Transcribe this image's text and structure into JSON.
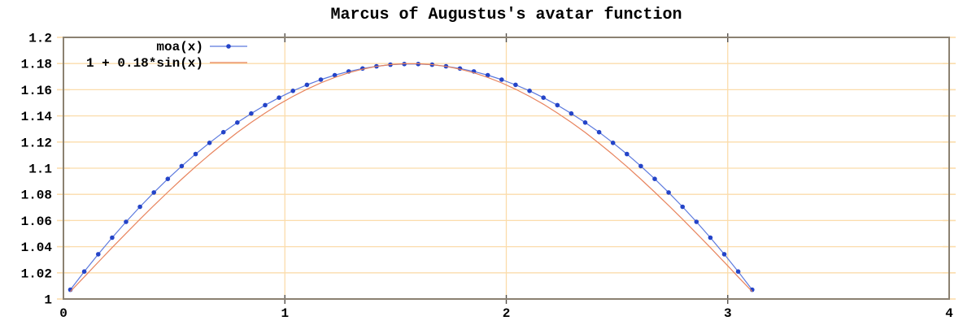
{
  "colors": {
    "background": "#ffffff",
    "grid": "#fbdcab",
    "border": "#8b8171",
    "x_tick_mark": "#55504a",
    "text": "#000000",
    "series_moa_line": "#5b79de",
    "series_moa_point": "#2444c8",
    "series_sine_line": "#e8845e"
  },
  "chart_data": {
    "type": "line",
    "title": "Marcus of Augustus's avatar function",
    "xlabel": "",
    "ylabel": "",
    "xlim": [
      0,
      4
    ],
    "ylim": [
      1,
      1.2
    ],
    "grid": true,
    "legend_position": "top-left",
    "x_tick_values": [
      0,
      1,
      2,
      3,
      4
    ],
    "x_tick_labels": [
      "0",
      "1",
      "2",
      "3",
      "4"
    ],
    "y_tick_values": [
      1,
      1.02,
      1.04,
      1.06,
      1.08,
      1.1,
      1.12,
      1.14,
      1.16,
      1.18,
      1.2
    ],
    "y_tick_labels": [
      "1",
      "1.02",
      "1.04",
      "1.06",
      "1.08",
      "1.1",
      "1.12",
      "1.14",
      "1.16",
      "1.18",
      "1.2"
    ],
    "series": [
      {
        "name": "moa(x)",
        "style": "linespoints",
        "color": "#5b79de",
        "point_color": "#2444c8",
        "x": [
          0.0314,
          0.0942,
          0.1571,
          0.2199,
          0.2827,
          0.3456,
          0.4084,
          0.4712,
          0.5341,
          0.5969,
          0.6597,
          0.7226,
          0.7854,
          0.8482,
          0.9111,
          0.9739,
          1.0367,
          1.0996,
          1.1624,
          1.2252,
          1.2881,
          1.3509,
          1.4137,
          1.4765,
          1.5394,
          1.6022,
          1.665,
          1.7279,
          1.7907,
          1.8535,
          1.9164,
          1.9792,
          2.042,
          2.1049,
          2.1677,
          2.2305,
          2.2934,
          2.3562,
          2.419,
          2.4819,
          2.5447,
          2.6075,
          2.6704,
          2.7332,
          2.796,
          2.8588,
          2.9217,
          2.9845,
          3.0473,
          3.1102
        ],
        "y": [
          1.0071,
          1.021,
          1.0342,
          1.0469,
          1.059,
          1.0705,
          1.0814,
          1.0918,
          1.1016,
          1.1108,
          1.1194,
          1.1275,
          1.1349,
          1.1418,
          1.1482,
          1.1539,
          1.1591,
          1.1637,
          1.1677,
          1.1711,
          1.174,
          1.1762,
          1.1779,
          1.1791,
          1.1796,
          1.1796,
          1.1791,
          1.1779,
          1.1762,
          1.174,
          1.1711,
          1.1677,
          1.1637,
          1.1591,
          1.1539,
          1.1482,
          1.1418,
          1.1349,
          1.1275,
          1.1194,
          1.1108,
          1.1016,
          1.0918,
          1.0814,
          1.0705,
          1.059,
          1.0469,
          1.0342,
          1.021,
          1.0071
        ]
      },
      {
        "name": "1 + 0.18*sin(x)",
        "style": "lines",
        "color": "#e8845e",
        "x": [
          0.0314,
          0.0942,
          0.1571,
          0.2199,
          0.2827,
          0.3456,
          0.4084,
          0.4712,
          0.5341,
          0.5969,
          0.6597,
          0.7226,
          0.7854,
          0.8482,
          0.9111,
          0.9739,
          1.0367,
          1.0996,
          1.1624,
          1.2252,
          1.2881,
          1.3509,
          1.4137,
          1.4765,
          1.5394,
          1.6022,
          1.665,
          1.7279,
          1.7907,
          1.8535,
          1.9164,
          1.9792,
          2.042,
          2.1049,
          2.1677,
          2.2305,
          2.2934,
          2.3562,
          2.419,
          2.4819,
          2.5447,
          2.6075,
          2.6704,
          2.7332,
          2.796,
          2.8588,
          2.9217,
          2.9845,
          3.0473,
          3.1102
        ],
        "y": [
          1.0057,
          1.0169,
          1.0282,
          1.0393,
          1.0502,
          1.061,
          1.0715,
          1.0817,
          1.0916,
          1.1012,
          1.1103,
          1.119,
          1.1273,
          1.135,
          1.1422,
          1.1489,
          1.1549,
          1.1604,
          1.1652,
          1.1694,
          1.1729,
          1.1757,
          1.1778,
          1.1792,
          1.1799,
          1.1799,
          1.1792,
          1.1778,
          1.1757,
          1.1729,
          1.1694,
          1.1652,
          1.1604,
          1.1549,
          1.1489,
          1.1422,
          1.135,
          1.1273,
          1.119,
          1.1103,
          1.1012,
          1.0916,
          1.0817,
          1.0715,
          1.061,
          1.0502,
          1.0393,
          1.0282,
          1.0169,
          1.0057
        ]
      }
    ]
  }
}
